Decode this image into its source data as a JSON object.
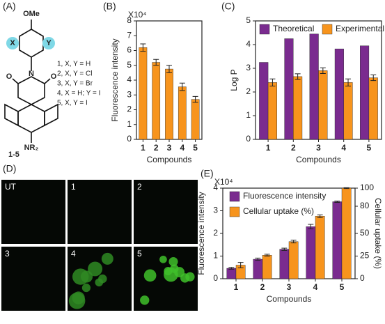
{
  "panel_a": {
    "label": "(A)",
    "ome": "OMe",
    "x": "X",
    "y": "Y",
    "n": "N",
    "o1": "O",
    "o2": "O",
    "nr2": "NR₂",
    "range": "1-5",
    "list": [
      "1, X, Y = H",
      "2, X, Y = Cl",
      "3, X, Y = Br",
      "4, X = H; Y = I",
      "5, X, Y = I"
    ]
  },
  "panel_d": {
    "label": "(D)",
    "images": [
      "UT",
      "1",
      "2",
      "3",
      "4",
      "5"
    ]
  },
  "chart_data": [
    {
      "type": "bar",
      "panel": "(B)",
      "multiplier": "X10⁴",
      "ylabel": "Fluorescence intensity",
      "xlabel": "Compounds",
      "categories": [
        "1",
        "2",
        "3",
        "4",
        "5"
      ],
      "values": [
        6.2,
        5.2,
        4.75,
        3.55,
        2.7
      ],
      "errors": [
        0.25,
        0.2,
        0.25,
        0.25,
        0.2
      ],
      "color": "#f7941d",
      "ylim": [
        0,
        8
      ],
      "yticks": [
        0,
        1,
        2,
        3,
        4,
        5,
        6,
        7,
        8
      ]
    },
    {
      "type": "bar",
      "panel": "(C)",
      "ylabel": "Log P",
      "xlabel": "Compounds",
      "legend": "top",
      "categories": [
        "1",
        "2",
        "3",
        "4",
        "5"
      ],
      "series": [
        {
          "name": "Theoretical",
          "color": "#7a2b8f",
          "values": [
            3.25,
            4.25,
            4.45,
            3.82,
            3.95
          ]
        },
        {
          "name": "Experimental",
          "color": "#f7941d",
          "values": [
            2.4,
            2.65,
            2.9,
            2.4,
            2.6
          ],
          "errors": [
            0.15,
            0.12,
            0.12,
            0.15,
            0.12
          ]
        }
      ],
      "ylim": [
        0,
        5
      ],
      "yticks": [
        0,
        1,
        2,
        3,
        4,
        5
      ]
    },
    {
      "type": "bar",
      "panel": "(E)",
      "multiplier": "X10⁴",
      "ylabel": "Fluorescence intensity",
      "y2label": "Cellular uptake (%)",
      "xlabel": "Compounds",
      "legend": "upper-left",
      "categories": [
        "1",
        "2",
        "3",
        "4",
        "5"
      ],
      "series": [
        {
          "name": "Fluorescence intensity",
          "color": "#7a2b8f",
          "values": [
            0.46,
            0.86,
            1.3,
            2.3,
            3.4
          ],
          "errors": [
            0.04,
            0.05,
            0.05,
            0.1,
            0.03
          ]
        },
        {
          "name": "Cellular uptake (%)",
          "color": "#f7941d",
          "axis": "y2",
          "values": [
            15,
            26,
            41,
            69,
            100
          ],
          "errors": [
            3,
            1,
            1.5,
            1.5,
            0.5
          ]
        }
      ],
      "ylim": [
        0,
        4
      ],
      "yticks": [
        0,
        1,
        2,
        3,
        4
      ],
      "y2lim": [
        0,
        100
      ],
      "y2ticks": [
        0,
        25,
        50,
        80,
        100
      ]
    }
  ]
}
